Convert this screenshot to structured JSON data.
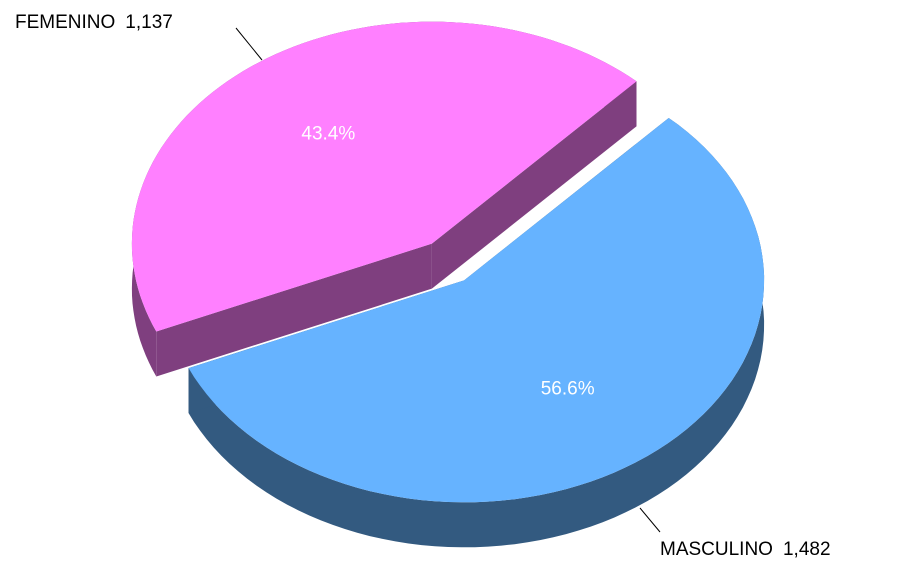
{
  "chart_data": {
    "type": "pie3d",
    "categories": [
      "FEMENINO",
      "MASCULINO"
    ],
    "values": [
      1137,
      1482
    ],
    "value_labels": [
      "1,137",
      "1,482"
    ],
    "percentages": [
      43.4,
      56.6
    ],
    "percentage_labels": [
      "43.4%",
      "56.6%"
    ],
    "colors": [
      "#ff80ff",
      "#66b3ff"
    ],
    "side_colors": [
      "#7f3f7f",
      "#335a80"
    ]
  }
}
